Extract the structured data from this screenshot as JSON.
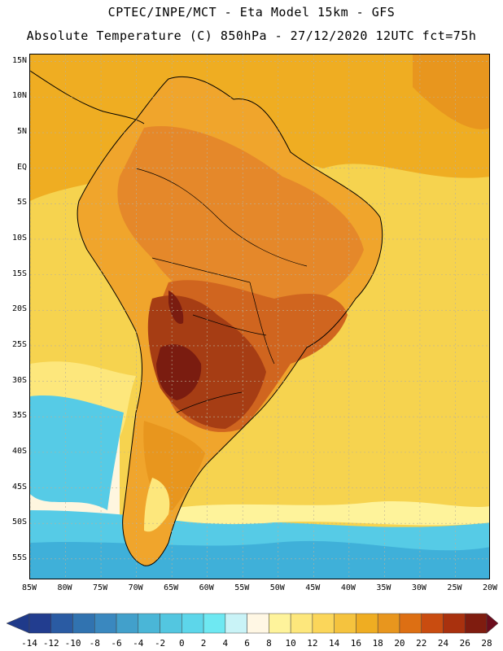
{
  "header": {
    "line1": "CPTEC/INPE/MCT -  Eta Model 15km - GFS",
    "line2": "Absolute Temperature (C) 850hPa - 27/12/2020 12UTC fct=75h"
  },
  "map": {
    "lat_labels": [
      "15N",
      "10N",
      "5N",
      "EQ",
      "5S",
      "10S",
      "15S",
      "20S",
      "25S",
      "30S",
      "35S",
      "40S",
      "45S",
      "50S",
      "55S"
    ],
    "lat_values": [
      15,
      10,
      5,
      0,
      -5,
      -10,
      -15,
      -20,
      -25,
      -30,
      -35,
      -40,
      -45,
      -50,
      -55
    ],
    "lon_labels": [
      "85W",
      "80W",
      "75W",
      "70W",
      "65W",
      "60W",
      "55W",
      "50W",
      "45W",
      "40W",
      "35W",
      "30W",
      "25W",
      "20W"
    ],
    "lon_values": [
      -85,
      -80,
      -75,
      -70,
      -65,
      -60,
      -55,
      -50,
      -45,
      -40,
      -35,
      -30,
      -25,
      -20
    ],
    "extent": {
      "lon_min": -85,
      "lon_max": -20,
      "lat_min": -58,
      "lat_max": 16
    },
    "colors": {
      "ocean_warm": "#f6d34f",
      "land_base": "#f0a52c",
      "land_warm": "#e5882a",
      "hot": "#d0651f",
      "very_hot": "#a63d14",
      "extreme": "#7a1c10",
      "cold_water": "#56cbe6",
      "colder_water": "#3fb0d9",
      "pale": "#fef6df",
      "grid": "#b9b29a",
      "coast": "#000000"
    }
  },
  "colorbar": {
    "labels": [
      "-14",
      "-12",
      "-10",
      "-8",
      "-6",
      "-4",
      "-2",
      "0",
      "2",
      "4",
      "6",
      "8",
      "10",
      "12",
      "14",
      "16",
      "18",
      "20",
      "22",
      "24",
      "26",
      "28"
    ],
    "colors": [
      "#223d8f",
      "#2a5ba3",
      "#3173b0",
      "#3a88bf",
      "#42a0cb",
      "#4ab6d7",
      "#53c6e0",
      "#5dd6ea",
      "#6ee8f2",
      "#c9f3f7",
      "#fff7e4",
      "#fef39b",
      "#fde77c",
      "#fbd65a",
      "#f5c33e",
      "#efad22",
      "#e8961e",
      "#dd6f13",
      "#c94c10",
      "#a9310e",
      "#7f1c0f"
    ],
    "under_color": "#1f3a8a",
    "over_color": "#6b0d1d"
  }
}
